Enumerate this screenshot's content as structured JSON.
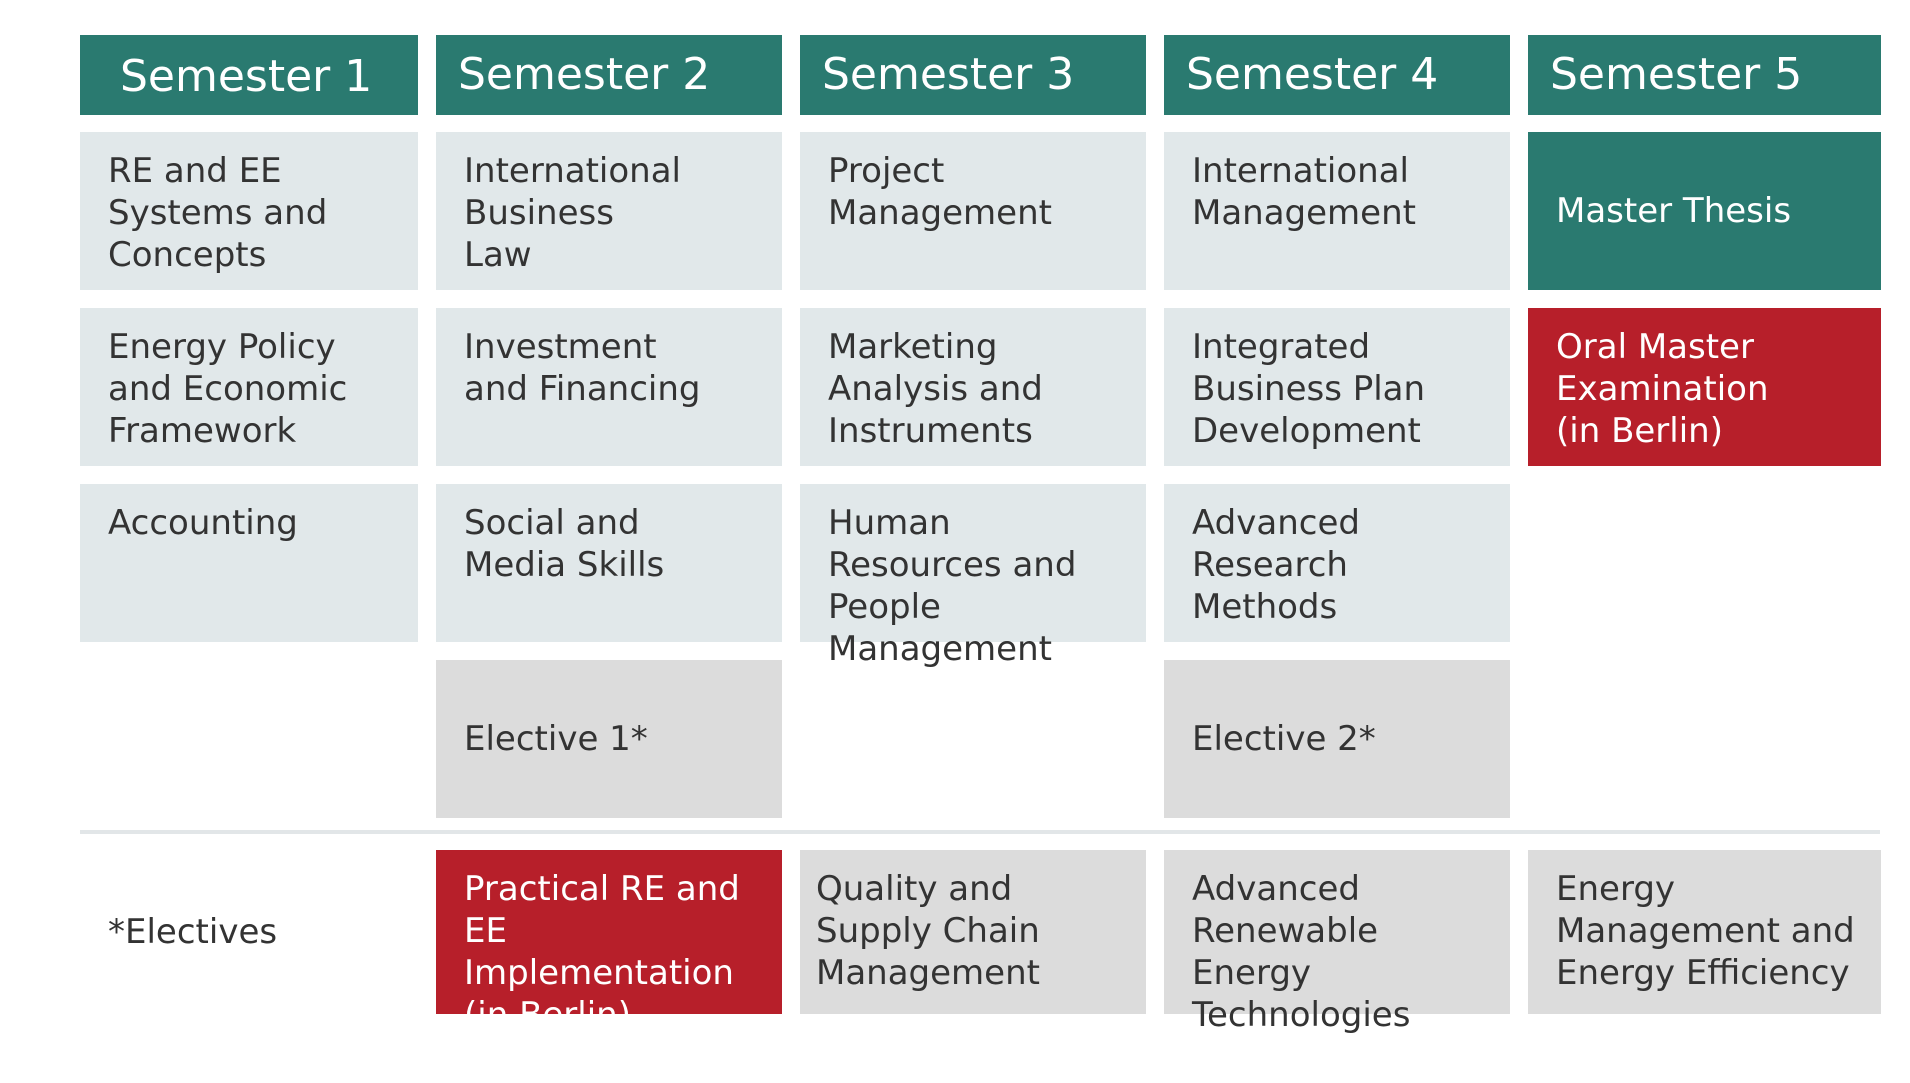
{
  "headers": [
    "Semester 1",
    "Semester 2",
    "Semester 3",
    "Semester 4",
    "Semester 5"
  ],
  "courses": {
    "s1": [
      "RE and EE Systems and Concepts",
      "Energy Policy and Economic Framework",
      "Accounting"
    ],
    "s2": [
      "International Business Law",
      "Investment and Financing",
      "Social and Media Skills",
      "Elective 1*"
    ],
    "s3": [
      "Project Management",
      "Marketing Analysis and Instruments",
      "Human Resources and People Management"
    ],
    "s4": [
      "International Management",
      "Integrated Business Plan Development",
      "Advanced Research Methods",
      "Elective 2*"
    ],
    "s5": [
      "Master Thesis",
      "Oral Master Examination (in Berlin)"
    ]
  },
  "electives": {
    "label": "*Electives",
    "options": [
      "Practical RE and EE Implementation (in Berlin)",
      "Quality and Supply Chain Management",
      "Advanced Renewable Energy Technologies",
      "Energy Management and Energy Efficiency"
    ]
  },
  "colors": {
    "header": "#2a7a70",
    "course": "#e1e8ea",
    "elective": "#dcdcdc",
    "berlin": "#b71f2a"
  }
}
